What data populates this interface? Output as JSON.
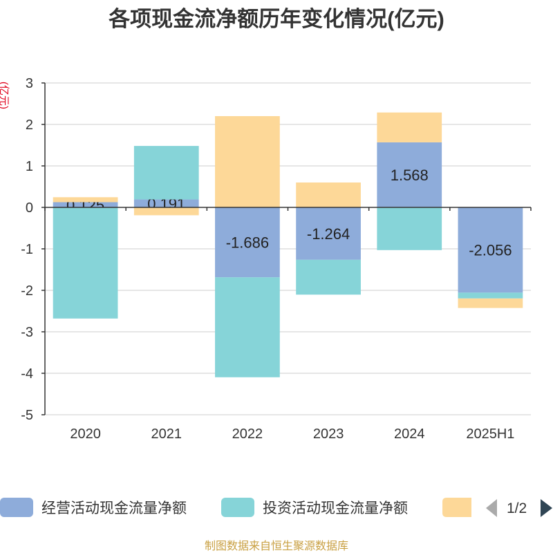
{
  "footer": "制图数据来自恒生聚源数据库",
  "legend": {
    "page": "1/2",
    "prev_icon": "triangle-left-icon",
    "next_icon": "triangle-right-icon",
    "prev_color": "#aaaaaa",
    "next_color": "#2f4554"
  },
  "chart_data": {
    "type": "bar",
    "stacked": true,
    "title": "各项现金流净额历年变化情况(亿元)",
    "xlabel": "",
    "ylabel": "(亿元)",
    "ylim": [
      -5,
      3
    ],
    "yticks": [
      3,
      2,
      1,
      0,
      -1,
      -2,
      -3,
      -4,
      -5
    ],
    "grid": true,
    "legend": "bottom",
    "categories": [
      "2020",
      "2021",
      "2022",
      "2023",
      "2024",
      "2025H1"
    ],
    "series": [
      {
        "name": "经营活动现金流量净额",
        "color": "#8eacda",
        "data_labels": true,
        "values": [
          0.125,
          0.191,
          -1.686,
          -1.264,
          1.568,
          -2.056
        ]
      },
      {
        "name": "投资活动现金流量净额",
        "color": "#86d4d8",
        "values": [
          -2.68,
          1.29,
          -2.41,
          -0.84,
          -1.03,
          -0.14
        ]
      },
      {
        "color": "#fdd898",
        "values": [
          0.12,
          -0.19,
          2.2,
          0.6,
          0.72,
          -0.23
        ]
      }
    ]
  }
}
